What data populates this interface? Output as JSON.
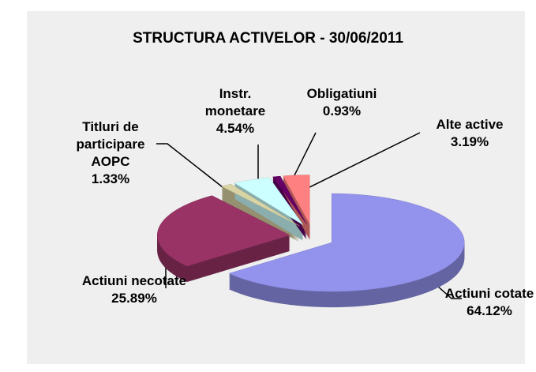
{
  "chart_data": {
    "type": "pie",
    "title": "STRUCTURA ACTIVELOR - 30/06/2011",
    "categories": [
      "Actiuni cotate",
      "Actiuni necotate",
      "Titluri de participare AOPC",
      "Instr. monetare",
      "Obligatiuni",
      "Alte active"
    ],
    "values": [
      64.12,
      25.89,
      1.33,
      4.54,
      0.93,
      3.19
    ],
    "value_labels": [
      "64.12%",
      "25.89%",
      "1.33%",
      "4.54%",
      "0.93%",
      "3.19%"
    ],
    "colors": [
      "#9393ee",
      "#993366",
      "#d9d4a4",
      "#ccffff",
      "#660066",
      "#ff8080"
    ]
  }
}
